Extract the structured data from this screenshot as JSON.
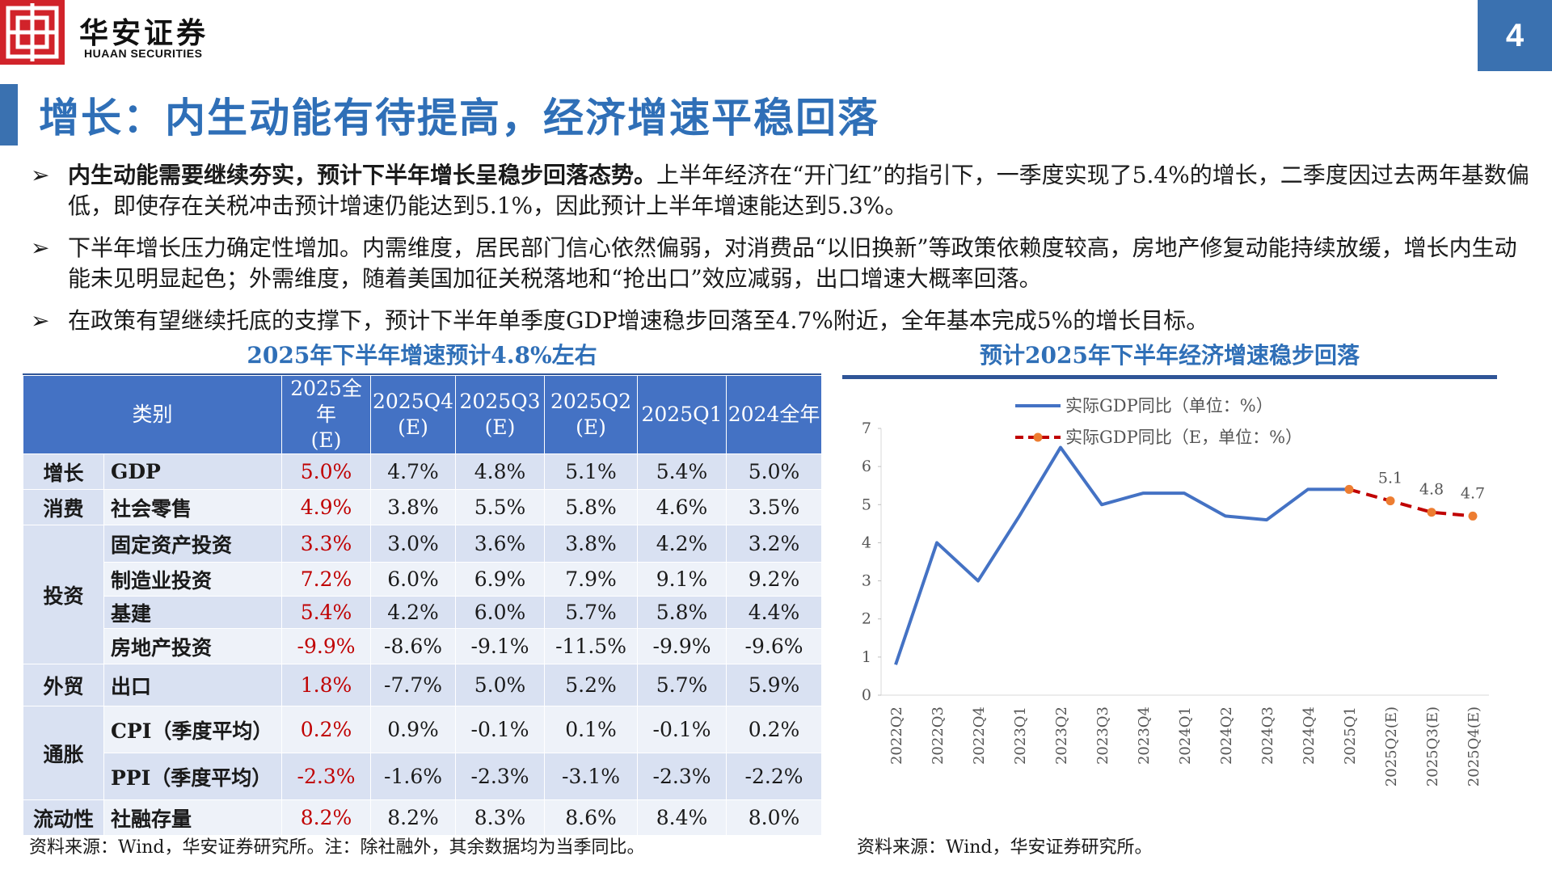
{
  "header": {
    "brand_cn": "华安证券",
    "brand_en": "HUAAN SECURITIES",
    "page_number": "4",
    "title": "增长：内生动能有待提高，经济增速平稳回落"
  },
  "colors": {
    "accent": "#2f6fb7",
    "logo_red": "#d1232a",
    "table_header": "#4472c4",
    "highlight": "#c00000",
    "actual_line": "#4472c4",
    "forecast_line": "#c00000",
    "forecast_marker": "#ed7d31"
  },
  "bullets": [
    {
      "bold": "内生动能需要继续夯实，预计下半年增长呈稳步回落态势。",
      "text": "上半年经济在“开门红”的指引下，一季度实现了5.4%的增长，二季度因过去两年基数偏低，即使存在关税冲击预计增速仍能达到5.1%，因此预计上半年增速能达到5.3%。"
    },
    {
      "bold": "",
      "text": "下半年增长压力确定性增加。内需维度，居民部门信心依然偏弱，对消费品“以旧换新”等政策依赖度较高，房地产修复动能持续放缓，增长内生动能未见明显起色；外需维度，随着美国加征关税落地和“抢出口”效应减弱，出口增速大概率回落。"
    },
    {
      "bold": "",
      "text": "在政策有望继续托底的支撑下，预计下半年单季度GDP增速稳步回落至4.7%附近，全年基本完成5%的增长目标。"
    }
  ],
  "table": {
    "title": "2025年下半年增速预计4.8%左右",
    "headers": [
      "类别",
      "2025全年\n(E)",
      "2025Q4\n(E)",
      "2025Q3\n(E)",
      "2025Q2\n(E)",
      "2025Q1",
      "2024全年"
    ],
    "groups": [
      {
        "category": "增长",
        "rows": [
          {
            "item": "GDP",
            "values": [
              "5.0%",
              "4.7%",
              "4.8%",
              "5.1%",
              "5.4%",
              "5.0%"
            ]
          }
        ]
      },
      {
        "category": "消费",
        "rows": [
          {
            "item": "社会零售",
            "values": [
              "4.9%",
              "3.8%",
              "5.5%",
              "5.8%",
              "4.6%",
              "3.5%"
            ]
          }
        ]
      },
      {
        "category": "投资",
        "rows": [
          {
            "item": "固定资产投资",
            "values": [
              "3.3%",
              "3.0%",
              "3.6%",
              "3.8%",
              "4.2%",
              "3.2%"
            ]
          },
          {
            "item": "制造业投资",
            "values": [
              "7.2%",
              "6.0%",
              "6.9%",
              "7.9%",
              "9.1%",
              "9.2%"
            ]
          },
          {
            "item": "基建",
            "values": [
              "5.4%",
              "4.2%",
              "6.0%",
              "5.7%",
              "5.8%",
              "4.4%"
            ]
          },
          {
            "item": "房地产投资",
            "values": [
              "-9.9%",
              "-8.6%",
              "-9.1%",
              "-11.5%",
              "-9.9%",
              "-9.6%"
            ]
          }
        ]
      },
      {
        "category": "外贸",
        "rows": [
          {
            "item": "出口",
            "values": [
              "1.8%",
              "-7.7%",
              "5.0%",
              "5.2%",
              "5.7%",
              "5.9%"
            ]
          }
        ]
      },
      {
        "category": "通胀",
        "rows": [
          {
            "item": "CPI（季度平均）",
            "values": [
              "0.2%",
              "0.9%",
              "-0.1%",
              "0.1%",
              "-0.1%",
              "0.2%"
            ]
          },
          {
            "item": "PPI（季度平均）",
            "values": [
              "-2.3%",
              "-1.6%",
              "-2.3%",
              "-3.1%",
              "-2.3%",
              "-2.2%"
            ]
          }
        ]
      },
      {
        "category": "流动性",
        "rows": [
          {
            "item": "社融存量",
            "values": [
              "8.2%",
              "8.2%",
              "8.3%",
              "8.6%",
              "8.4%",
              "8.0%"
            ]
          }
        ]
      }
    ],
    "source": "资料来源：Wind，华安证券研究所。注：除社融外，其余数据均为当季同比。"
  },
  "chart_data": {
    "type": "line",
    "title": "预计2025年下半年经济增速稳步回落",
    "categories": [
      "2022Q2",
      "2022Q3",
      "2022Q4",
      "2023Q1",
      "2023Q2",
      "2023Q3",
      "2023Q4",
      "2024Q1",
      "2024Q2",
      "2024Q3",
      "2024Q4",
      "2025Q1",
      "2025Q2(E)",
      "2025Q3(E)",
      "2025Q4(E)"
    ],
    "series": [
      {
        "name": "实际GDP同比（单位：%）",
        "values": [
          0.8,
          4.0,
          3.0,
          4.7,
          6.5,
          5.0,
          5.3,
          5.3,
          4.7,
          4.6,
          5.4,
          5.4,
          null,
          null,
          null
        ]
      },
      {
        "name": "实际GDP同比（E，单位：%）",
        "values": [
          null,
          null,
          null,
          null,
          null,
          null,
          null,
          null,
          null,
          null,
          null,
          5.4,
          5.1,
          4.8,
          4.7
        ]
      }
    ],
    "data_labels": [
      {
        "category": "2025Q2(E)",
        "text": "5.1"
      },
      {
        "category": "2025Q3(E)",
        "text": "4.8"
      },
      {
        "category": "2025Q4(E)",
        "text": "4.7"
      }
    ],
    "yticks": [
      "0",
      "1",
      "2",
      "3",
      "4",
      "5",
      "6",
      "7"
    ],
    "ylim": [
      0,
      7
    ],
    "legend_position": "top-left",
    "grid": false,
    "source": "资料来源：Wind，华安证券研究所。"
  }
}
